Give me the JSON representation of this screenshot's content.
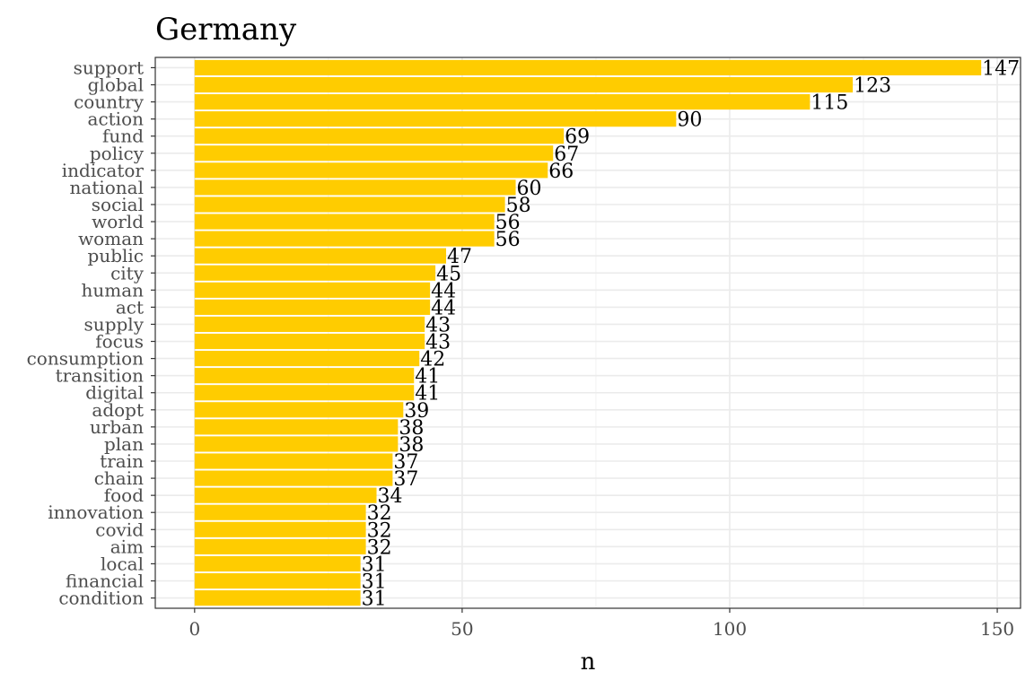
{
  "chart_data": {
    "type": "bar",
    "orientation": "horizontal",
    "title": "Germany",
    "xlabel": "n",
    "ylabel": "",
    "xlim": [
      -7.35,
      154.35
    ],
    "xticks": [
      0,
      50,
      100,
      150
    ],
    "grid": true,
    "legend": "none",
    "bar_color": "#FFCC00",
    "categories": [
      "support",
      "global",
      "country",
      "action",
      "fund",
      "policy",
      "indicator",
      "national",
      "social",
      "world",
      "woman",
      "public",
      "city",
      "human",
      "act",
      "supply",
      "focus",
      "consumption",
      "transition",
      "digital",
      "adopt",
      "urban",
      "plan",
      "train",
      "chain",
      "food",
      "innovation",
      "covid",
      "aim",
      "local",
      "financial",
      "condition"
    ],
    "values": [
      147,
      123,
      115,
      90,
      69,
      67,
      66,
      60,
      58,
      56,
      56,
      47,
      45,
      44,
      44,
      43,
      43,
      42,
      41,
      41,
      39,
      38,
      38,
      37,
      37,
      34,
      32,
      32,
      32,
      31,
      31,
      31
    ]
  }
}
